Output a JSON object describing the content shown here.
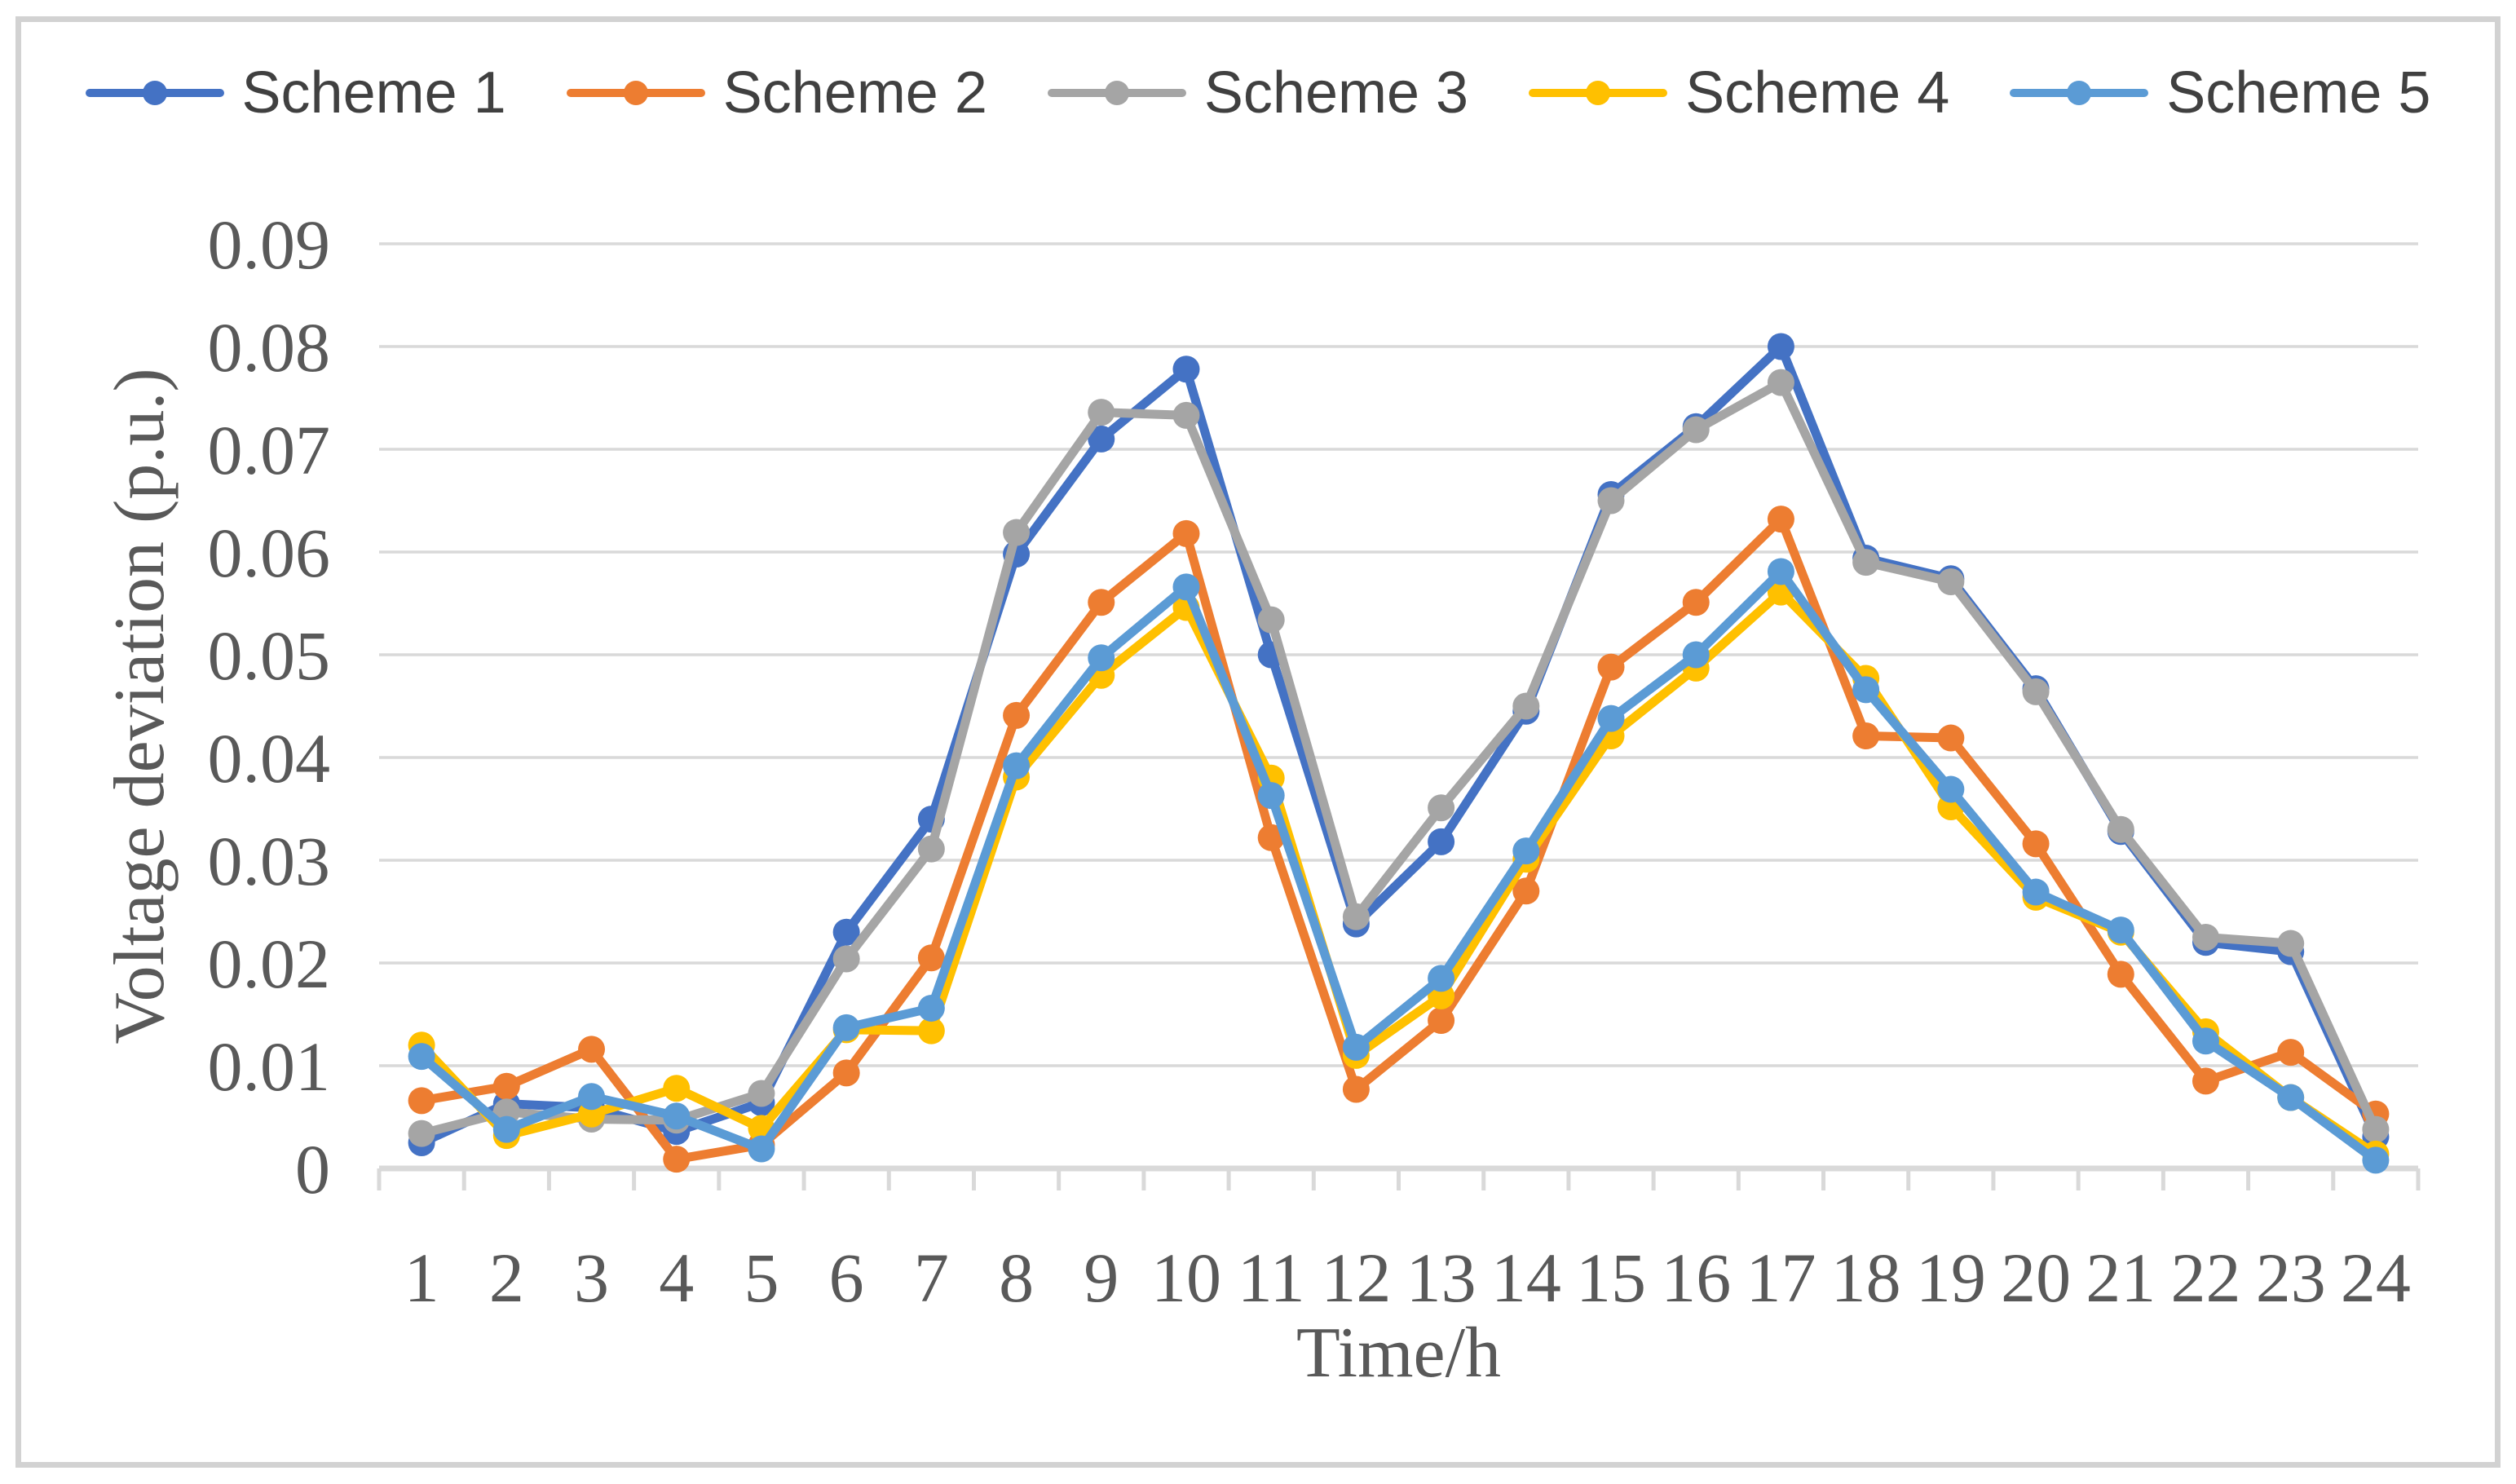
{
  "chart_data": {
    "type": "line",
    "title": "",
    "xlabel": "Time/h",
    "ylabel": "Voltage deviation (p.u.)",
    "x": [
      1,
      2,
      3,
      4,
      5,
      6,
      7,
      8,
      9,
      10,
      11,
      12,
      13,
      14,
      15,
      16,
      17,
      18,
      19,
      20,
      21,
      22,
      23,
      24
    ],
    "x_tick_labels": [
      "1",
      "2",
      "3",
      "4",
      "5",
      "6",
      "7",
      "8",
      "9",
      "10",
      "11",
      "12",
      "13",
      "14",
      "15",
      "16",
      "17",
      "18",
      "19",
      "20",
      "21",
      "22",
      "23",
      "24"
    ],
    "y_ticks": [
      0,
      0.01,
      0.02,
      0.03,
      0.04,
      0.05,
      0.06,
      0.07,
      0.08,
      0.09
    ],
    "y_tick_labels": [
      "0",
      "0.01",
      "0.02",
      "0.03",
      "0.04",
      "0.05",
      "0.06",
      "0.07",
      "0.08",
      "0.09"
    ],
    "ylim": [
      0,
      0.09
    ],
    "grid": "horizontal",
    "legend_position": "top",
    "series": [
      {
        "name": "Scheme 1",
        "color": "#4472C4",
        "values": [
          0.0025,
          0.0063,
          0.0059,
          0.0036,
          0.0064,
          0.023,
          0.034,
          0.0598,
          0.071,
          0.0778,
          0.05,
          0.0238,
          0.0318,
          0.0445,
          0.0656,
          0.0722,
          0.08,
          0.0594,
          0.0574,
          0.0467,
          0.0328,
          0.022,
          0.0211,
          0.0031
        ]
      },
      {
        "name": "Scheme 2",
        "color": "#ED7D31",
        "values": [
          0.0066,
          0.008,
          0.0116,
          0.0009,
          0.0023,
          0.0093,
          0.0205,
          0.0441,
          0.0551,
          0.0618,
          0.0322,
          0.0077,
          0.0144,
          0.027,
          0.0488,
          0.0551,
          0.0632,
          0.0421,
          0.0419,
          0.0316,
          0.0189,
          0.0085,
          0.0113,
          0.0053
        ]
      },
      {
        "name": "Scheme 3",
        "color": "#A5A5A5",
        "values": [
          0.0034,
          0.0055,
          0.0048,
          0.0047,
          0.0073,
          0.0204,
          0.0311,
          0.0619,
          0.0736,
          0.0733,
          0.0534,
          0.0245,
          0.0351,
          0.045,
          0.065,
          0.0719,
          0.0765,
          0.059,
          0.0571,
          0.0464,
          0.033,
          0.0225,
          0.0219,
          0.0038
        ]
      },
      {
        "name": "Scheme 4",
        "color": "#FFC000",
        "values": [
          0.012,
          0.0032,
          0.0053,
          0.0078,
          0.0039,
          0.0135,
          0.0134,
          0.0381,
          0.048,
          0.0546,
          0.038,
          0.011,
          0.0168,
          0.0301,
          0.0421,
          0.0487,
          0.0561,
          0.0477,
          0.0352,
          0.0264,
          0.023,
          0.0133,
          0.0069,
          0.0014
        ]
      },
      {
        "name": "Scheme 5",
        "color": "#5B9BD5",
        "values": [
          0.0109,
          0.0038,
          0.007,
          0.0051,
          0.0019,
          0.0137,
          0.0156,
          0.0392,
          0.0497,
          0.0566,
          0.0363,
          0.0118,
          0.0185,
          0.0309,
          0.0438,
          0.05,
          0.0581,
          0.0466,
          0.0369,
          0.0269,
          0.0232,
          0.0124,
          0.0069,
          0.0008
        ]
      }
    ],
    "colors": {
      "grid": "#D9D9D9",
      "axis_line": "#D9D9D9",
      "tick_text": "#595959",
      "legend_text": "#404040",
      "frame_border": "#D2D2D2"
    }
  }
}
